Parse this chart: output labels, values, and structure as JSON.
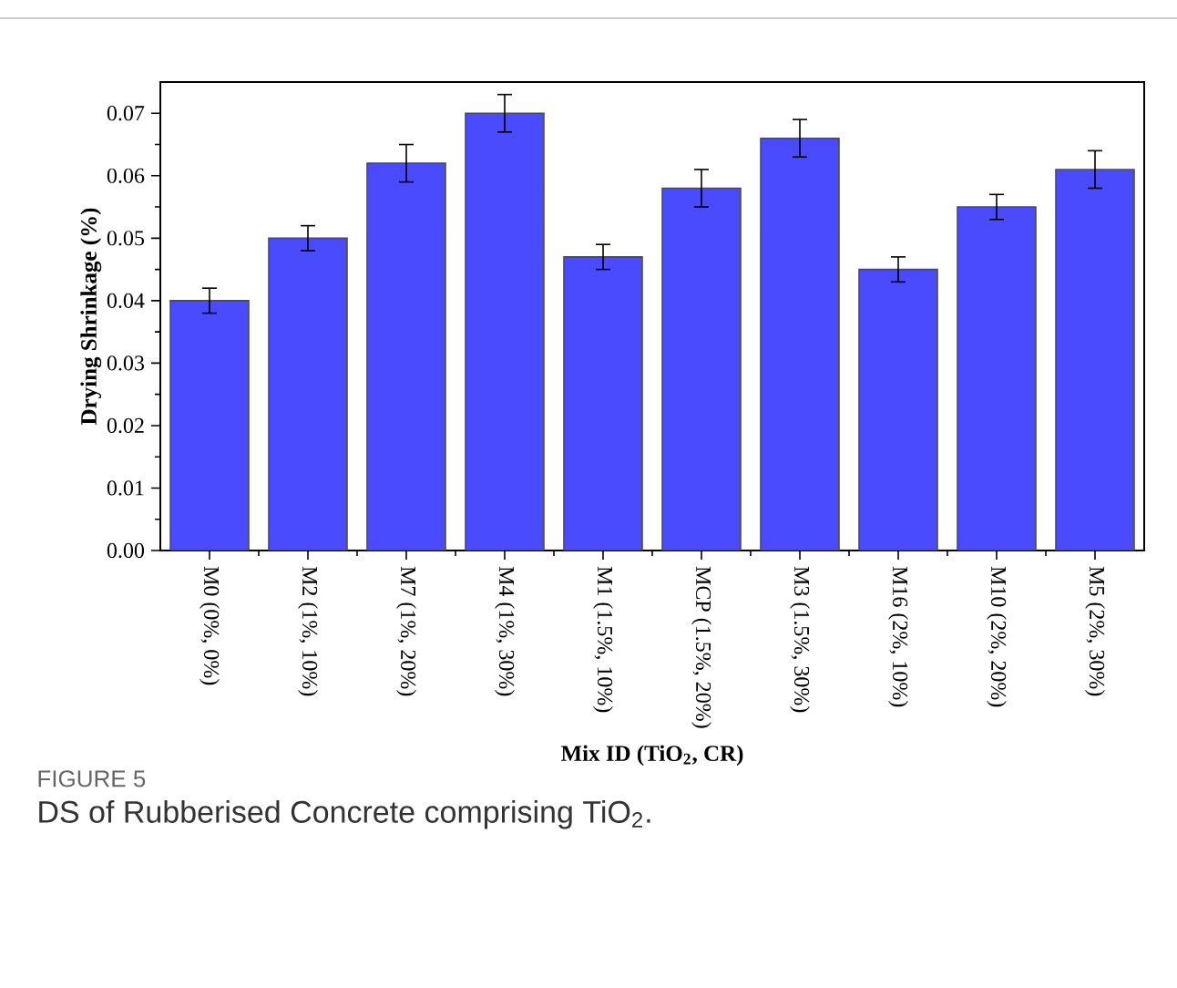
{
  "chart_data": {
    "type": "bar",
    "xlabel": "Mix ID (TiO$_{2}$, CR)",
    "ylabel": "Drying Shrinkage (%)",
    "categories": [
      "M0 (0%, 0%)",
      "M2 (1%, 10%)",
      "M7 (1%, 20%)",
      "M4 (1%, 30%)",
      "M1 (1.5%, 10%)",
      "MCP (1.5%, 20%)",
      "M3 (1.5%, 30%)",
      "M16 (2%, 10%)",
      "M10 (2%, 20%)",
      "M5 (2%, 30%)"
    ],
    "values": [
      0.04,
      0.05,
      0.062,
      0.07,
      0.047,
      0.058,
      0.066,
      0.045,
      0.055,
      0.061
    ],
    "errors": [
      0.002,
      0.002,
      0.003,
      0.003,
      0.002,
      0.003,
      0.003,
      0.002,
      0.002,
      0.003
    ],
    "color": "#4a4aff",
    "ylim": [
      0,
      0.075
    ],
    "yticks": [
      {
        "value": 0,
        "label": "0.00"
      },
      {
        "value": 0.01,
        "label": "0.01"
      },
      {
        "value": 0.02,
        "label": "0.02"
      },
      {
        "value": 0.03,
        "label": "0.03"
      },
      {
        "value": 0.04,
        "label": "0.04"
      },
      {
        "value": 0.05,
        "label": "0.05"
      },
      {
        "value": 0.06,
        "label": "0.06"
      },
      {
        "value": 0.07,
        "label": "0.07"
      }
    ],
    "annotations": [
      "FIGURE 5",
      "DS of Rubberised Concrete comprising TiO$_{2}$."
    ]
  }
}
